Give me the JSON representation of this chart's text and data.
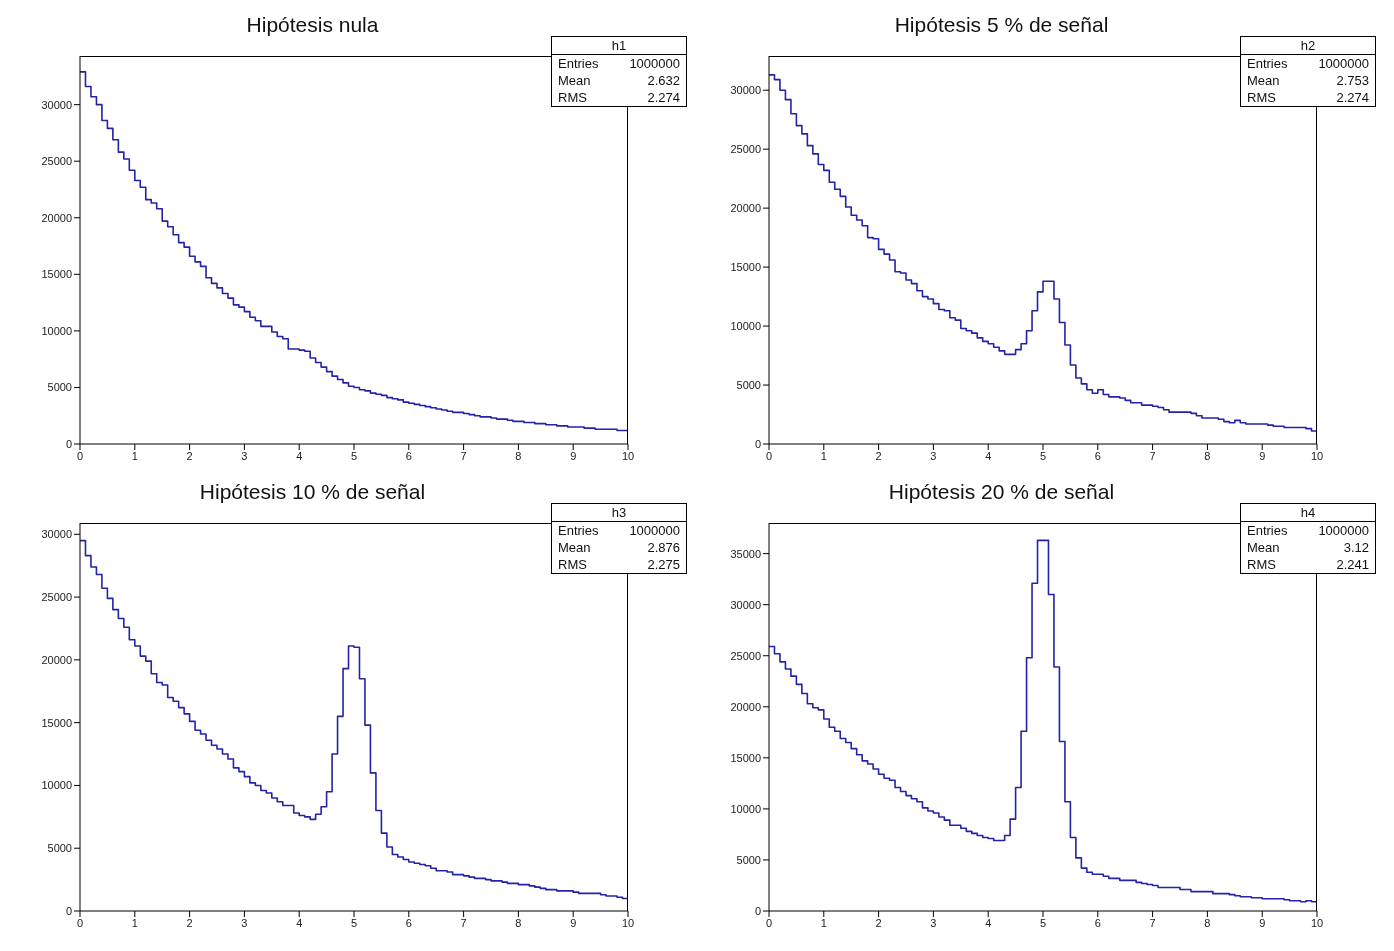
{
  "chart_data": [
    {
      "type": "step",
      "title": "Hipótesis nula",
      "color": "#2323a8",
      "xlim": [
        0,
        10
      ],
      "xticks": [
        0,
        1,
        2,
        3,
        4,
        5,
        6,
        7,
        8,
        9,
        10
      ],
      "ylim": [
        0,
        34300
      ],
      "yticks": [
        0,
        5000,
        10000,
        15000,
        20000,
        25000,
        30000
      ],
      "annotations": [
        "h1",
        "Entries 1000000",
        "Mean 2.632",
        "RMS 2.274"
      ],
      "x": [
        0,
        0.1,
        0.2,
        0.3,
        0.4,
        0.5,
        0.6,
        0.7,
        0.8,
        0.9,
        1,
        1.1,
        1.2,
        1.3,
        1.4,
        1.5,
        1.6,
        1.7,
        1.8,
        1.9,
        2,
        2.1,
        2.2,
        2.3,
        2.4,
        2.5,
        2.6,
        2.7,
        2.8,
        2.9,
        3,
        3.1,
        3.2,
        3.3,
        3.4,
        3.5,
        3.6,
        3.7,
        3.8,
        3.9,
        4,
        4.1,
        4.2,
        4.3,
        4.4,
        4.5,
        4.6,
        4.7,
        4.8,
        4.9,
        5,
        5.1,
        5.2,
        5.3,
        5.4,
        5.5,
        5.6,
        5.7,
        5.8,
        5.9,
        6,
        6.1,
        6.2,
        6.3,
        6.4,
        6.5,
        6.6,
        6.7,
        6.8,
        6.9,
        7,
        7.1,
        7.2,
        7.3,
        7.4,
        7.5,
        7.6,
        7.7,
        7.8,
        7.9,
        8,
        8.1,
        8.2,
        8.3,
        8.4,
        8.5,
        8.6,
        8.7,
        8.8,
        8.9,
        9,
        9.1,
        9.2,
        9.3,
        9.4,
        9.5,
        9.6,
        9.7,
        9.8,
        9.9,
        10
      ],
      "values": [
        32900,
        31600,
        30700,
        30000,
        28600,
        27900,
        26900,
        25800,
        25200,
        24200,
        23300,
        22700,
        21600,
        21300,
        20800,
        19700,
        19200,
        18500,
        17800,
        17400,
        16600,
        16100,
        15700,
        14700,
        14200,
        13800,
        13300,
        12900,
        12300,
        12100,
        11700,
        11200,
        10900,
        10400,
        10400,
        9900,
        9500,
        9300,
        8400,
        8400,
        8300,
        8200,
        7600,
        7200,
        6800,
        6400,
        6000,
        5700,
        5400,
        5100,
        5000,
        4800,
        4700,
        4500,
        4400,
        4300,
        4100,
        4000,
        3900,
        3700,
        3600,
        3500,
        3400,
        3300,
        3200,
        3100,
        3000,
        2900,
        2800,
        2800,
        2700,
        2600,
        2500,
        2400,
        2400,
        2300,
        2200,
        2200,
        2100,
        2000,
        2000,
        1900,
        1900,
        1800,
        1800,
        1700,
        1700,
        1600,
        1600,
        1500,
        1500,
        1500,
        1400,
        1400,
        1300,
        1300,
        1300,
        1300,
        1200,
        1200,
        1200
      ]
    },
    {
      "type": "step",
      "title": "Hipótesis 5 % de señal",
      "color": "#2323a8",
      "xlim": [
        0,
        10
      ],
      "xticks": [
        0,
        1,
        2,
        3,
        4,
        5,
        6,
        7,
        8,
        9,
        10
      ],
      "ylim": [
        0,
        32900
      ],
      "yticks": [
        0,
        5000,
        10000,
        15000,
        20000,
        25000,
        30000
      ],
      "annotations": [
        "h2",
        "Entries 1000000",
        "Mean 2.753",
        "RMS 2.274"
      ],
      "x": [
        0,
        0.1,
        0.2,
        0.3,
        0.4,
        0.5,
        0.6,
        0.7,
        0.8,
        0.9,
        1,
        1.1,
        1.2,
        1.3,
        1.4,
        1.5,
        1.6,
        1.7,
        1.8,
        1.9,
        2,
        2.1,
        2.2,
        2.3,
        2.4,
        2.5,
        2.6,
        2.7,
        2.8,
        2.9,
        3,
        3.1,
        3.2,
        3.3,
        3.4,
        3.5,
        3.6,
        3.7,
        3.8,
        3.9,
        4,
        4.1,
        4.2,
        4.3,
        4.4,
        4.5,
        4.6,
        4.7,
        4.8,
        4.9,
        5,
        5.1,
        5.2,
        5.3,
        5.4,
        5.5,
        5.6,
        5.7,
        5.8,
        5.9,
        6,
        6.1,
        6.2,
        6.3,
        6.4,
        6.5,
        6.6,
        6.7,
        6.8,
        6.9,
        7,
        7.1,
        7.2,
        7.3,
        7.4,
        7.5,
        7.6,
        7.7,
        7.8,
        7.9,
        8,
        8.1,
        8.2,
        8.3,
        8.4,
        8.5,
        8.6,
        8.7,
        8.8,
        8.9,
        9,
        9.1,
        9.2,
        9.3,
        9.4,
        9.5,
        9.6,
        9.7,
        9.8,
        9.9,
        10
      ],
      "values": [
        31300,
        30900,
        30000,
        29200,
        28000,
        27000,
        26300,
        25300,
        24600,
        23700,
        23200,
        22200,
        21600,
        21000,
        20100,
        19400,
        19000,
        18500,
        17500,
        17400,
        16500,
        16100,
        15600,
        14600,
        14500,
        13900,
        13600,
        13000,
        12500,
        12300,
        11900,
        11400,
        11300,
        10700,
        10500,
        9800,
        9600,
        9400,
        9000,
        8700,
        8500,
        8200,
        7900,
        7600,
        7600,
        8000,
        8500,
        9600,
        11300,
        12900,
        13800,
        13800,
        12300,
        10300,
        8400,
        6700,
        5600,
        5100,
        4600,
        4300,
        4600,
        4200,
        4000,
        4000,
        3900,
        3700,
        3500,
        3500,
        3300,
        3300,
        3200,
        3100,
        2900,
        2700,
        2700,
        2700,
        2700,
        2600,
        2400,
        2200,
        2200,
        2200,
        2100,
        1900,
        1800,
        2000,
        1800,
        1700,
        1700,
        1700,
        1700,
        1600,
        1500,
        1500,
        1400,
        1400,
        1400,
        1400,
        1300,
        1100,
        1100
      ]
    },
    {
      "type": "step",
      "title": "Hipótesis 10 % de señal",
      "color": "#2323a8",
      "xlim": [
        0,
        10
      ],
      "xticks": [
        0,
        1,
        2,
        3,
        4,
        5,
        6,
        7,
        8,
        9,
        10
      ],
      "ylim": [
        0,
        30900
      ],
      "yticks": [
        0,
        5000,
        10000,
        15000,
        20000,
        25000,
        30000
      ],
      "annotations": [
        "h3",
        "Entries 1000000",
        "Mean 2.876",
        "RMS 2.275"
      ],
      "x": [
        0,
        0.1,
        0.2,
        0.3,
        0.4,
        0.5,
        0.6,
        0.7,
        0.8,
        0.9,
        1,
        1.1,
        1.2,
        1.3,
        1.4,
        1.5,
        1.6,
        1.7,
        1.8,
        1.9,
        2,
        2.1,
        2.2,
        2.3,
        2.4,
        2.5,
        2.6,
        2.7,
        2.8,
        2.9,
        3,
        3.1,
        3.2,
        3.3,
        3.4,
        3.5,
        3.6,
        3.7,
        3.8,
        3.9,
        4,
        4.1,
        4.2,
        4.3,
        4.4,
        4.5,
        4.6,
        4.7,
        4.8,
        4.9,
        5,
        5.1,
        5.2,
        5.3,
        5.4,
        5.5,
        5.6,
        5.7,
        5.8,
        5.9,
        6,
        6.1,
        6.2,
        6.3,
        6.4,
        6.5,
        6.6,
        6.7,
        6.8,
        6.9,
        7,
        7.1,
        7.2,
        7.3,
        7.4,
        7.5,
        7.6,
        7.7,
        7.8,
        7.9,
        8,
        8.1,
        8.2,
        8.3,
        8.4,
        8.5,
        8.6,
        8.7,
        8.8,
        8.9,
        9,
        9.1,
        9.2,
        9.3,
        9.4,
        9.5,
        9.6,
        9.7,
        9.8,
        9.9,
        10
      ],
      "values": [
        29500,
        28300,
        27400,
        26800,
        25700,
        24900,
        24000,
        23300,
        22600,
        21600,
        21100,
        20300,
        19900,
        18900,
        18200,
        18000,
        17000,
        16700,
        16200,
        15700,
        15100,
        14400,
        14100,
        13600,
        13200,
        12900,
        12500,
        12100,
        11400,
        11100,
        10700,
        10200,
        10000,
        9600,
        9400,
        9000,
        8700,
        8400,
        8400,
        7800,
        7600,
        7500,
        7300,
        7700,
        8300,
        9500,
        12500,
        15500,
        19300,
        21100,
        21000,
        18500,
        14800,
        11000,
        8000,
        6200,
        5100,
        4500,
        4300,
        4100,
        3900,
        3800,
        3700,
        3600,
        3400,
        3200,
        3200,
        3100,
        2900,
        2900,
        2800,
        2700,
        2600,
        2600,
        2500,
        2400,
        2400,
        2300,
        2200,
        2200,
        2100,
        2100,
        2000,
        1900,
        1800,
        1700,
        1700,
        1600,
        1600,
        1600,
        1500,
        1400,
        1400,
        1400,
        1400,
        1300,
        1200,
        1200,
        1100,
        1000,
        1000
      ]
    },
    {
      "type": "step",
      "title": "Hipótesis 20 % de señal",
      "color": "#2323a8",
      "xlim": [
        0,
        10
      ],
      "xticks": [
        0,
        1,
        2,
        3,
        4,
        5,
        6,
        7,
        8,
        9,
        10
      ],
      "ylim": [
        0,
        38000
      ],
      "yticks": [
        0,
        5000,
        10000,
        15000,
        20000,
        25000,
        30000,
        35000
      ],
      "annotations": [
        "h4",
        "Entries 1000000",
        "Mean 3.12",
        "RMS 2.241"
      ],
      "x": [
        0,
        0.1,
        0.2,
        0.3,
        0.4,
        0.5,
        0.6,
        0.7,
        0.8,
        0.9,
        1,
        1.1,
        1.2,
        1.3,
        1.4,
        1.5,
        1.6,
        1.7,
        1.8,
        1.9,
        2,
        2.1,
        2.2,
        2.3,
        2.4,
        2.5,
        2.6,
        2.7,
        2.8,
        2.9,
        3,
        3.1,
        3.2,
        3.3,
        3.4,
        3.5,
        3.6,
        3.7,
        3.8,
        3.9,
        4,
        4.1,
        4.2,
        4.3,
        4.4,
        4.5,
        4.6,
        4.7,
        4.8,
        4.9,
        5,
        5.1,
        5.2,
        5.3,
        5.4,
        5.5,
        5.6,
        5.7,
        5.8,
        5.9,
        6,
        6.1,
        6.2,
        6.3,
        6.4,
        6.5,
        6.6,
        6.7,
        6.8,
        6.9,
        7,
        7.1,
        7.2,
        7.3,
        7.4,
        7.5,
        7.6,
        7.7,
        7.8,
        7.9,
        8,
        8.1,
        8.2,
        8.3,
        8.4,
        8.5,
        8.6,
        8.7,
        8.8,
        8.9,
        9,
        9.1,
        9.2,
        9.3,
        9.4,
        9.5,
        9.6,
        9.7,
        9.8,
        9.9,
        10
      ],
      "values": [
        25900,
        25200,
        24400,
        23700,
        23000,
        22200,
        21300,
        20300,
        19900,
        19700,
        18800,
        18000,
        17600,
        16900,
        16500,
        15900,
        15300,
        14700,
        14400,
        13900,
        13400,
        13000,
        12800,
        12100,
        11700,
        11300,
        11000,
        10700,
        10100,
        9800,
        9600,
        9200,
        8900,
        8400,
        8400,
        8100,
        7800,
        7600,
        7400,
        7200,
        7100,
        6900,
        6900,
        7400,
        9000,
        12100,
        17600,
        24800,
        32100,
        36300,
        36300,
        31000,
        23900,
        16600,
        10700,
        7200,
        5200,
        4200,
        3800,
        3600,
        3600,
        3400,
        3200,
        3200,
        3000,
        3000,
        3000,
        2800,
        2700,
        2600,
        2500,
        2300,
        2300,
        2300,
        2300,
        2100,
        2100,
        1900,
        1900,
        1900,
        1900,
        1700,
        1700,
        1700,
        1600,
        1500,
        1400,
        1400,
        1300,
        1300,
        1200,
        1200,
        1200,
        1200,
        1100,
        1000,
        1000,
        900,
        1000,
        900,
        900
      ]
    }
  ]
}
